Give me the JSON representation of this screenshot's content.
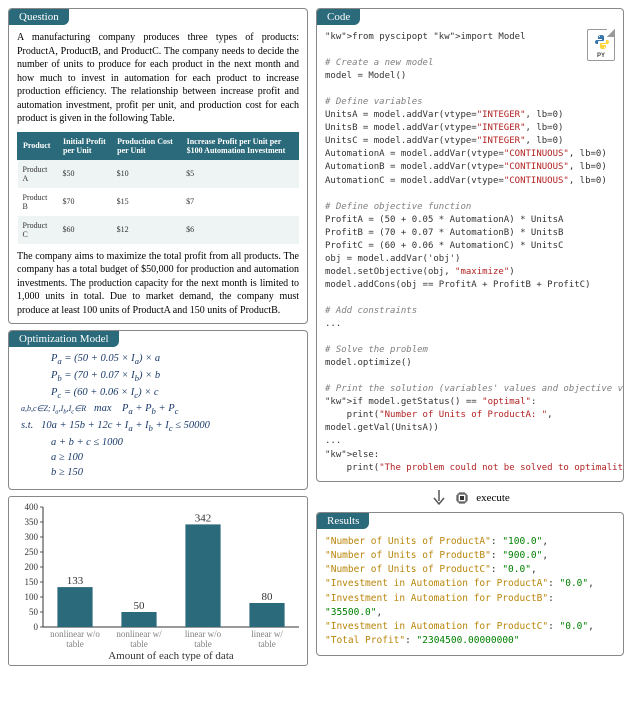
{
  "question": {
    "header": "Question",
    "para1": "A manufacturing company produces three types of products: ProductA, ProductB, and ProductC. The company needs to decide the number of units to produce for each product in the next month and how much to invest in automation for each product to increase production efficiency. The relationship between increase profit and automation investment, profit per unit, and production cost for each product is given in the following Table.",
    "table": {
      "columns": [
        "Product",
        "Initial Profit per Unit",
        "Production Cost per Unit",
        "Increase Profit per Unit per $100 Automation Investment"
      ],
      "rows": [
        [
          "Product A",
          "$50",
          "$10",
          "$5"
        ],
        [
          "Product B",
          "$70",
          "$15",
          "$7"
        ],
        [
          "Product C",
          "$60",
          "$12",
          "$6"
        ]
      ],
      "header_bg": "#2b6a7a",
      "header_color": "#ffffff",
      "row_alt_bg": "#eef3f4"
    },
    "para2": "The company aims to maximize the total profit from all products. The company has a total budget of $50,000 for production and automation investments. The production capacity for the next month is limited to 1,000 units in total. Due to market demand, the company must produce at least 100 units of ProductA and 150 units of ProductB."
  },
  "opt_model": {
    "header": "Optimization Model",
    "lines": [
      "Pₐ = (50 + 0.05 × Iₐ) × a",
      "P_b = (70 + 0.07 × I_b) × b",
      "P_c = (60 + 0.06 × I_c) × c",
      "max_{a,b,c∈Z; I_a,I_b,I_c∈R}  P_a + P_b + P_c",
      "s.t.   10a + 15b + 12c + I_a + I_b + I_c ≤ 50000",
      "a + b + c ≤ 1000",
      "a ≥ 100",
      "b ≥ 150"
    ]
  },
  "chart": {
    "type": "bar",
    "categories": [
      "nonlinear w/o table",
      "nonlinear w/ table",
      "linear w/o table",
      "linear w/ table"
    ],
    "values": [
      133,
      50,
      342,
      80
    ],
    "bar_color": "#2b6a7a",
    "ylim": [
      0,
      400
    ],
    "ytick_step": 50,
    "xlabel": "Amount of each type of data",
    "label_color": "#808080",
    "axis_fontsize": 10,
    "value_label_fontsize": 11,
    "background_color": "#ffffff"
  },
  "code": {
    "header": "Code",
    "badge": "PY",
    "text": "from pyscipopt import Model\n\n# Create a new model\nmodel = Model()\n\n# Define variables\nUnitsA = model.addVar(vtype=\"INTEGER\", lb=0)\nUnitsB = model.addVar(vtype=\"INTEGER\", lb=0)\nUnitsC = model.addVar(vtype=\"INTEGER\", lb=0)\nAutomationA = model.addVar(vtype=\"CONTINUOUS\", lb=0)\nAutomationB = model.addVar(vtype=\"CONTINUOUS\", lb=0)\nAutomationC = model.addVar(vtype=\"CONTINUOUS\", lb=0)\n\n# Define objective function\nProfitA = (50 + 0.05 * AutomationA) * UnitsA\nProfitB = (70 + 0.07 * AutomationB) * UnitsB\nProfitC = (60 + 0.06 * AutomationC) * UnitsC\nobj = model.addVar('obj')\nmodel.setObjective(obj, \"maximize\")\nmodel.addCons(obj == ProfitA + ProfitB + ProfitC)\n\n# Add constraints\n...\n\n# Solve the problem\nmodel.optimize()\n\n# Print the solution (variables' values and objective value)\nif model.getStatus() == \"optimal\":\n    print(\"Number of Units of ProductA: \",\nmodel.getVal(UnitsA))\n...\nelse:\n    print(\"The problem could not be solved to optimality.\")"
  },
  "execute_label": "execute",
  "results": {
    "header": "Results",
    "rows": [
      [
        "\"Number of Units of ProductA\"",
        "\"100.0\""
      ],
      [
        "\"Number of Units of ProductB\"",
        "\"900.0\""
      ],
      [
        "\"Number of Units of ProductC\"",
        "\"0.0\""
      ],
      [
        "\"Investment in Automation for ProductA\"",
        "\"0.0\""
      ],
      [
        "\"Investment in Automation for ProductB\"",
        "\"35500.0\""
      ],
      [
        "\"Investment in Automation for ProductC\"",
        "\"0.0\""
      ],
      [
        "\"Total Profit\"",
        "\"2304500.00000000\""
      ]
    ]
  }
}
